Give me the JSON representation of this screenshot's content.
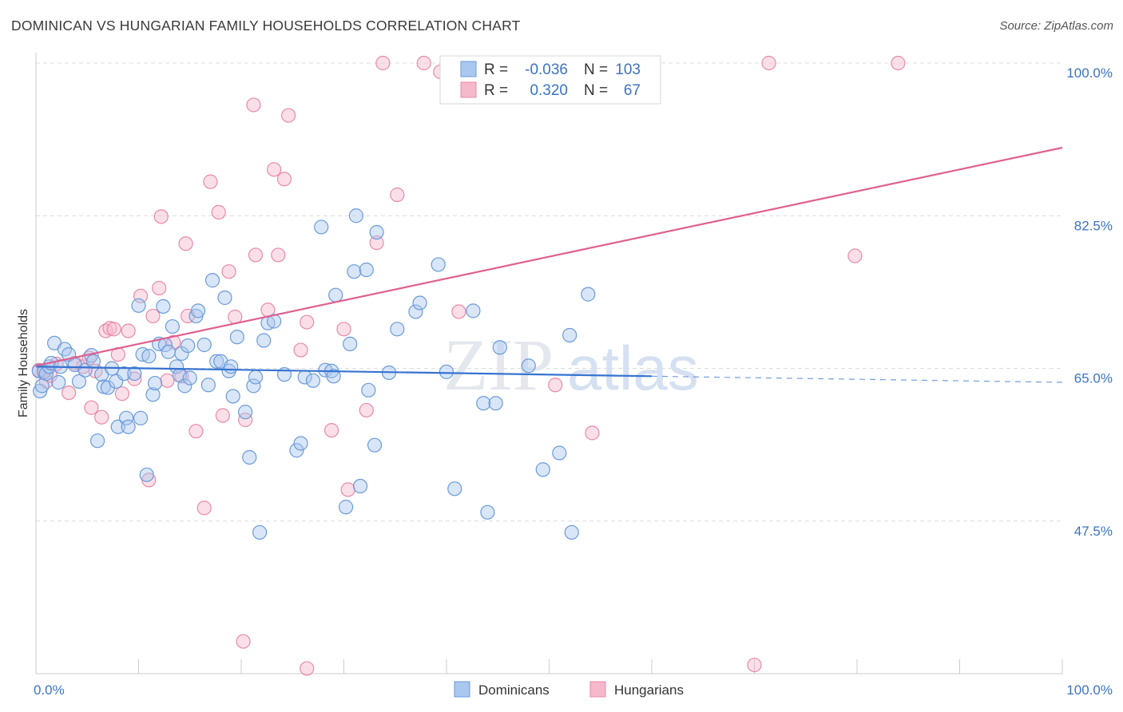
{
  "title": "DOMINICAN VS HUNGARIAN FAMILY HOUSEHOLDS CORRELATION CHART",
  "source": "Source: ZipAtlas.com",
  "watermark": {
    "zip": "ZIP",
    "atlas": "atlas"
  },
  "stats": [
    {
      "r_label": "R =",
      "r_value": "-0.036",
      "n_label": "N =",
      "n_value": "103",
      "color": "#aac7ef"
    },
    {
      "r_label": "R =",
      "r_value": "0.320",
      "n_label": "N =",
      "n_value": "67",
      "color": "#f6b8cb"
    }
  ],
  "legend": [
    {
      "label": "Dominicans",
      "color": "#aac7ef"
    },
    {
      "label": "Hungarians",
      "color": "#f6b8cb"
    }
  ],
  "colors": {
    "dominican_fill": "#aac7ef",
    "dominican_stroke": "#6a9bd8",
    "dominican_line": "#3573d0",
    "hungarian_fill": "#f6b8cb",
    "hungarian_stroke": "#e88aa8",
    "hungarian_line": "#e0608f",
    "tick_label": "#3b73c4",
    "grid": "#dcdcdc"
  },
  "chart_data": {
    "type": "scatter",
    "title": "DOMINICAN VS HUNGARIAN FAMILY HOUSEHOLDS CORRELATION CHART",
    "xlabel": "",
    "ylabel": "Family Households",
    "xlim": [
      0,
      100
    ],
    "ylim": [
      30,
      100
    ],
    "x_tick_labels": [
      "0.0%",
      "100.0%"
    ],
    "y_ticks": [
      47.5,
      65.0,
      82.5,
      100.0
    ],
    "y_tick_labels": [
      "47.5%",
      "65.0%",
      "82.5%",
      "100.0%"
    ],
    "grid": "horizontal dashed",
    "legend_position": "bottom-center",
    "series": [
      {
        "name": "Dominicans",
        "trend": {
          "x": [
            0,
            60
          ],
          "y": [
            65.2,
            64.1
          ],
          "dashed_to": [
            100,
            63.4
          ]
        },
        "points": [
          [
            0.3,
            64.7
          ],
          [
            0.4,
            62.4
          ],
          [
            0.6,
            63.0
          ],
          [
            0.8,
            64.6
          ],
          [
            1.0,
            64.4
          ],
          [
            1.3,
            65.2
          ],
          [
            1.5,
            65.6
          ],
          [
            1.8,
            67.9
          ],
          [
            2.2,
            63.4
          ],
          [
            2.4,
            65.2
          ],
          [
            2.8,
            67.2
          ],
          [
            3.2,
            66.6
          ],
          [
            3.8,
            65.4
          ],
          [
            4.2,
            63.5
          ],
          [
            4.8,
            64.8
          ],
          [
            5.4,
            66.5
          ],
          [
            5.6,
            65.8
          ],
          [
            6.0,
            56.7
          ],
          [
            6.4,
            64.3
          ],
          [
            6.6,
            62.9
          ],
          [
            7.0,
            62.8
          ],
          [
            7.4,
            65.0
          ],
          [
            7.8,
            63.5
          ],
          [
            8.0,
            58.3
          ],
          [
            8.6,
            64.4
          ],
          [
            8.8,
            59.3
          ],
          [
            9.0,
            58.3
          ],
          [
            9.6,
            64.4
          ],
          [
            10.0,
            72.2
          ],
          [
            10.2,
            59.3
          ],
          [
            10.4,
            66.6
          ],
          [
            10.8,
            52.8
          ],
          [
            11.0,
            66.4
          ],
          [
            11.4,
            62.0
          ],
          [
            11.6,
            63.3
          ],
          [
            12.0,
            67.8
          ],
          [
            12.4,
            72.1
          ],
          [
            12.6,
            67.7
          ],
          [
            12.9,
            66.9
          ],
          [
            13.3,
            69.8
          ],
          [
            13.7,
            65.2
          ],
          [
            14.0,
            64.2
          ],
          [
            14.2,
            66.7
          ],
          [
            14.5,
            63.0
          ],
          [
            14.8,
            67.6
          ],
          [
            15.0,
            63.9
          ],
          [
            15.6,
            71.0
          ],
          [
            15.8,
            71.6
          ],
          [
            16.4,
            67.7
          ],
          [
            16.8,
            63.1
          ],
          [
            17.2,
            75.1
          ],
          [
            17.6,
            65.8
          ],
          [
            18.0,
            65.8
          ],
          [
            18.4,
            73.1
          ],
          [
            18.8,
            64.7
          ],
          [
            19.0,
            65.2
          ],
          [
            19.2,
            61.8
          ],
          [
            19.6,
            68.6
          ],
          [
            20.4,
            60.0
          ],
          [
            20.8,
            54.8
          ],
          [
            21.2,
            63.0
          ],
          [
            21.4,
            64.0
          ],
          [
            21.8,
            46.2
          ],
          [
            22.2,
            68.2
          ],
          [
            22.6,
            70.2
          ],
          [
            23.2,
            70.4
          ],
          [
            24.2,
            64.3
          ],
          [
            25.4,
            55.6
          ],
          [
            25.8,
            56.4
          ],
          [
            26.2,
            64.0
          ],
          [
            27.0,
            63.6
          ],
          [
            27.8,
            81.2
          ],
          [
            28.2,
            64.8
          ],
          [
            28.8,
            64.7
          ],
          [
            29.0,
            64.1
          ],
          [
            29.2,
            73.4
          ],
          [
            30.2,
            49.1
          ],
          [
            30.6,
            67.8
          ],
          [
            31.0,
            76.1
          ],
          [
            31.2,
            82.5
          ],
          [
            31.6,
            51.5
          ],
          [
            32.2,
            76.3
          ],
          [
            32.4,
            62.5
          ],
          [
            33.0,
            56.2
          ],
          [
            33.2,
            80.6
          ],
          [
            34.4,
            64.5
          ],
          [
            35.2,
            69.5
          ],
          [
            37.0,
            71.5
          ],
          [
            37.4,
            72.5
          ],
          [
            39.2,
            76.9
          ],
          [
            40.0,
            64.6
          ],
          [
            40.8,
            51.2
          ],
          [
            42.6,
            71.6
          ],
          [
            43.6,
            61.0
          ],
          [
            44.0,
            48.5
          ],
          [
            44.8,
            61.0
          ],
          [
            45.2,
            67.4
          ],
          [
            48.0,
            65.3
          ],
          [
            49.4,
            53.4
          ],
          [
            51.0,
            55.3
          ],
          [
            52.0,
            68.8
          ],
          [
            52.2,
            46.2
          ],
          [
            53.8,
            73.5
          ]
        ]
      },
      {
        "name": "Hungarians",
        "trend": {
          "x": [
            0,
            100
          ],
          "y": [
            65.3,
            90.3
          ]
        },
        "points": [
          [
            0.3,
            64.8
          ],
          [
            0.8,
            64.7
          ],
          [
            1.0,
            63.5
          ],
          [
            1.4,
            64.2
          ],
          [
            2.0,
            65.5
          ],
          [
            3.2,
            62.2
          ],
          [
            3.8,
            65.6
          ],
          [
            4.6,
            65.2
          ],
          [
            5.2,
            66.2
          ],
          [
            5.4,
            60.5
          ],
          [
            5.8,
            64.7
          ],
          [
            6.4,
            59.4
          ],
          [
            6.8,
            69.3
          ],
          [
            7.2,
            69.6
          ],
          [
            7.6,
            69.5
          ],
          [
            8.0,
            66.6
          ],
          [
            8.4,
            62.1
          ],
          [
            9.0,
            69.3
          ],
          [
            9.6,
            63.8
          ],
          [
            10.2,
            73.3
          ],
          [
            11.0,
            52.2
          ],
          [
            11.4,
            71.0
          ],
          [
            12.0,
            74.2
          ],
          [
            12.2,
            82.4
          ],
          [
            12.8,
            63.6
          ],
          [
            13.4,
            68.0
          ],
          [
            14.2,
            64.1
          ],
          [
            14.6,
            79.3
          ],
          [
            14.8,
            71.0
          ],
          [
            15.6,
            57.8
          ],
          [
            16.4,
            49.0
          ],
          [
            17.0,
            86.4
          ],
          [
            17.8,
            82.9
          ],
          [
            18.2,
            59.6
          ],
          [
            18.8,
            76.1
          ],
          [
            19.4,
            70.9
          ],
          [
            20.2,
            33.7
          ],
          [
            20.4,
            59.1
          ],
          [
            21.2,
            95.2
          ],
          [
            21.4,
            78.0
          ],
          [
            22.6,
            71.7
          ],
          [
            23.2,
            87.8
          ],
          [
            23.6,
            78.0
          ],
          [
            24.2,
            86.7
          ],
          [
            24.6,
            94.0
          ],
          [
            25.8,
            67.1
          ],
          [
            26.4,
            30.6
          ],
          [
            26.4,
            70.3
          ],
          [
            28.8,
            57.9
          ],
          [
            30.0,
            69.5
          ],
          [
            30.4,
            51.1
          ],
          [
            32.2,
            60.2
          ],
          [
            33.2,
            79.4
          ],
          [
            33.8,
            100.0
          ],
          [
            35.2,
            84.9
          ],
          [
            37.8,
            100.0
          ],
          [
            39.4,
            99.0
          ],
          [
            40.2,
            97.6
          ],
          [
            41.2,
            71.5
          ],
          [
            49.2,
            100.0
          ],
          [
            50.6,
            63.1
          ],
          [
            53.6,
            100.0
          ],
          [
            54.2,
            57.6
          ],
          [
            70.0,
            31.0
          ],
          [
            71.4,
            100.0
          ],
          [
            79.8,
            77.9
          ],
          [
            84.0,
            100.0
          ]
        ]
      }
    ]
  }
}
